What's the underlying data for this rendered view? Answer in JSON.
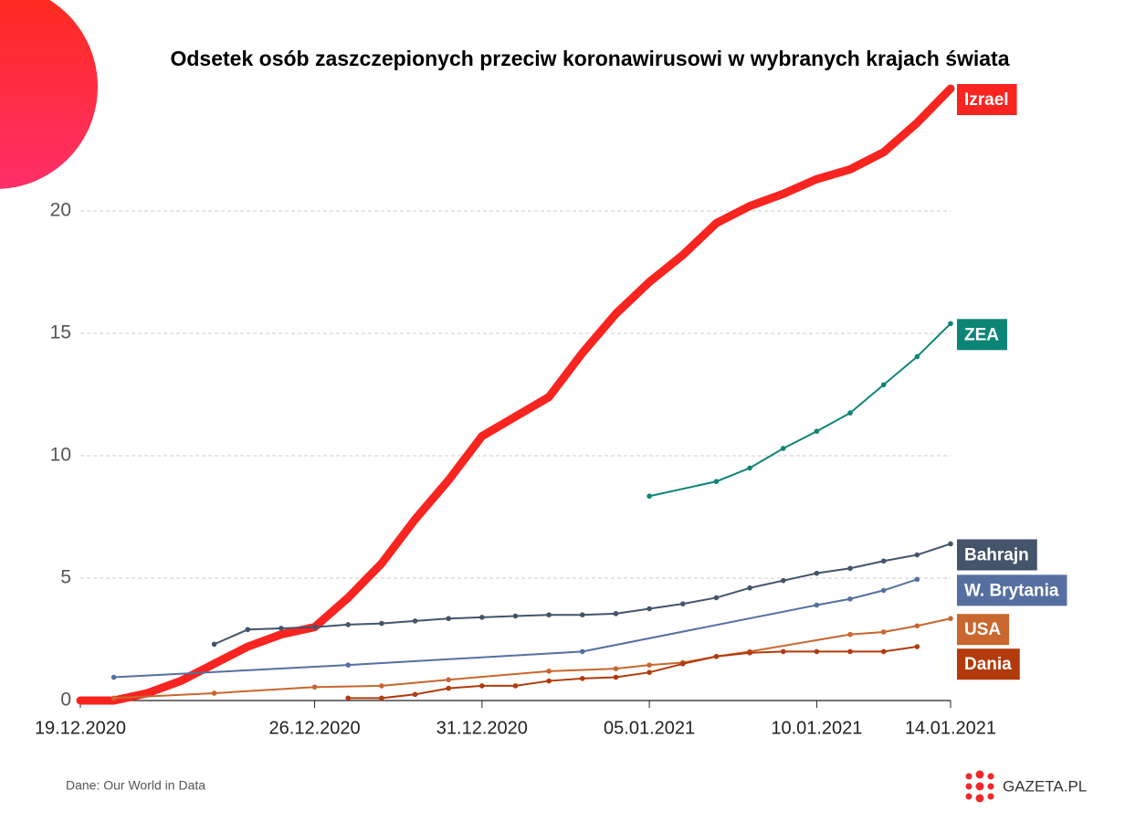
{
  "chart_data": {
    "type": "line",
    "title": "Odsetek osób zaszczepionych przeciw koronawirusowi w wybranych krajach świata",
    "source": "Dane: Our World in Data",
    "logo": "GAZETA.PL",
    "xlim": [
      "19.12.2020",
      "14.01.2021"
    ],
    "xticks": [
      "19.12.2020",
      "26.12.2020",
      "31.12.2020",
      "05.01.2021",
      "10.01.2021",
      "14.01.2021"
    ],
    "ylim": [
      0,
      25
    ],
    "yticks": [
      0,
      5,
      10,
      15,
      20
    ],
    "grid": true,
    "series": [
      {
        "name": "Izrael",
        "color": "#f8241f",
        "x": [
          "19.12.2020",
          "20.12.2020",
          "21.12.2020",
          "22.12.2020",
          "23.12.2020",
          "24.12.2020",
          "25.12.2020",
          "26.12.2020",
          "27.12.2020",
          "28.12.2020",
          "29.12.2020",
          "30.12.2020",
          "31.12.2020",
          "01.01.2021",
          "02.01.2021",
          "03.01.2021",
          "04.01.2021",
          "05.01.2021",
          "06.01.2021",
          "07.01.2021",
          "08.01.2021",
          "09.01.2021",
          "10.01.2021",
          "11.01.2021",
          "12.01.2021",
          "13.01.2021",
          "14.01.2021"
        ],
        "values": [
          0.0,
          0.0,
          0.3,
          0.8,
          1.5,
          2.2,
          2.7,
          3.0,
          4.2,
          5.6,
          7.4,
          9.0,
          10.8,
          11.6,
          12.4,
          14.2,
          15.8,
          17.1,
          18.2,
          19.5,
          20.2,
          20.7,
          21.3,
          21.7,
          22.4,
          23.6,
          25.0
        ]
      },
      {
        "name": "ZEA",
        "color": "#0d8576",
        "x": [
          "05.01.2021",
          "07.01.2021",
          "08.01.2021",
          "09.01.2021",
          "10.01.2021",
          "11.01.2021",
          "12.01.2021",
          "13.01.2021",
          "14.01.2021"
        ],
        "values": [
          8.35,
          8.95,
          9.5,
          10.3,
          11.0,
          11.75,
          12.9,
          14.05,
          15.4
        ]
      },
      {
        "name": "Bahrajn",
        "color": "#44546a",
        "x": [
          "23.12.2020",
          "24.12.2020",
          "25.12.2020",
          "26.12.2020",
          "27.12.2020",
          "28.12.2020",
          "29.12.2020",
          "30.12.2020",
          "31.12.2020",
          "01.01.2021",
          "02.01.2021",
          "03.01.2021",
          "04.01.2021",
          "05.01.2021",
          "06.01.2021",
          "07.01.2021",
          "08.01.2021",
          "09.01.2021",
          "10.01.2021",
          "11.01.2021",
          "12.01.2021",
          "13.01.2021",
          "14.01.2021"
        ],
        "values": [
          2.3,
          2.9,
          2.95,
          3.0,
          3.1,
          3.15,
          3.25,
          3.35,
          3.4,
          3.45,
          3.5,
          3.5,
          3.55,
          3.75,
          3.95,
          4.2,
          4.6,
          4.9,
          5.2,
          5.4,
          5.7,
          5.95,
          6.4
        ]
      },
      {
        "name": "W. Brytania",
        "color": "#5570a0",
        "x": [
          "20.12.2020",
          "27.12.2020",
          "03.01.2021",
          "10.01.2021",
          "11.01.2021",
          "12.01.2021",
          "13.01.2021"
        ],
        "values": [
          0.95,
          1.45,
          2.0,
          3.9,
          4.15,
          4.5,
          4.95
        ]
      },
      {
        "name": "USA",
        "color": "#c8672e",
        "x": [
          "20.12.2020",
          "23.12.2020",
          "26.12.2020",
          "28.12.2020",
          "30.12.2020",
          "02.01.2021",
          "04.01.2021",
          "05.01.2021",
          "06.01.2021",
          "07.01.2021",
          "08.01.2021",
          "11.01.2021",
          "12.01.2021",
          "13.01.2021",
          "14.01.2021"
        ],
        "values": [
          0.1,
          0.3,
          0.55,
          0.6,
          0.85,
          1.2,
          1.3,
          1.45,
          1.55,
          1.8,
          2.0,
          2.7,
          2.8,
          3.05,
          3.35
        ]
      },
      {
        "name": "Dania",
        "color": "#b23a0c",
        "x": [
          "27.12.2020",
          "28.12.2020",
          "29.12.2020",
          "30.12.2020",
          "31.12.2020",
          "01.01.2021",
          "02.01.2021",
          "03.01.2021",
          "04.01.2021",
          "05.01.2021",
          "06.01.2021",
          "07.01.2021",
          "08.01.2021",
          "09.01.2021",
          "10.01.2021",
          "11.01.2021",
          "12.01.2021",
          "13.01.2021"
        ],
        "values": [
          0.1,
          0.1,
          0.25,
          0.5,
          0.6,
          0.6,
          0.8,
          0.9,
          0.95,
          1.15,
          1.5,
          1.8,
          1.95,
          2.0,
          2.0,
          2.0,
          2.0,
          2.2
        ]
      }
    ]
  }
}
